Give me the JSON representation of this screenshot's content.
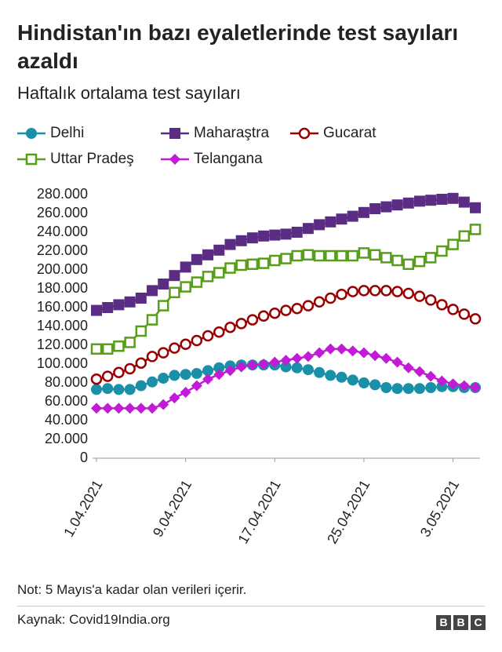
{
  "chart_data": {
    "type": "line",
    "title": "Hindistan'ın bazı eyaletlerinde test sayıları azaldı",
    "subtitle": "Haftalık ortalama test sayıları",
    "note": "Not: 5 Mayıs'a kadar olan verileri içerir.",
    "source": "Kaynak: Covid19India.org",
    "categories": [
      "1.04.2021",
      null,
      null,
      null,
      null,
      null,
      null,
      null,
      "9.04.2021",
      null,
      null,
      null,
      null,
      null,
      null,
      null,
      "17.04.2021",
      null,
      null,
      null,
      null,
      null,
      null,
      null,
      "25.04.2021",
      null,
      null,
      null,
      null,
      null,
      null,
      null,
      "3.05.2021",
      null,
      null
    ],
    "ylim": [
      0,
      280000
    ],
    "yticks": [
      0,
      {
        "value": 20000,
        "label": "20.000"
      },
      {
        "value": 40000,
        "label": "40.000"
      },
      {
        "value": 60000,
        "label": "60.000"
      },
      {
        "value": 80000,
        "label": "80.000"
      },
      {
        "value": 100000,
        "label": "100.000"
      },
      {
        "value": 120000,
        "label": "120.000"
      },
      {
        "value": 140000,
        "label": "140.000"
      },
      {
        "value": 160000,
        "label": "160.000"
      },
      {
        "value": 180000,
        "label": "180.000"
      },
      {
        "value": 200000,
        "label": "200.000"
      },
      {
        "value": 220000,
        "label": "220.000"
      },
      {
        "value": 240000,
        "label": "240.000"
      },
      {
        "value": 260000,
        "label": "260.000"
      },
      {
        "value": 280000,
        "label": "280.000"
      }
    ],
    "series": [
      {
        "name": "Delhi",
        "color": "#1a8fa8",
        "marker": "circle",
        "values": [
          73000,
          74000,
          73000,
          73000,
          77000,
          81000,
          85000,
          88000,
          89000,
          90000,
          93000,
          96000,
          98000,
          99000,
          99000,
          99000,
          99000,
          97000,
          96000,
          94000,
          91000,
          88000,
          86000,
          83000,
          80000,
          78000,
          75000,
          74000,
          74000,
          74000,
          75000,
          76000,
          76000,
          75000,
          75000
        ]
      },
      {
        "name": "Maharaştra",
        "color": "#5b2c83",
        "marker": "square",
        "values": [
          157000,
          160000,
          163000,
          166000,
          170000,
          178000,
          185000,
          194000,
          203000,
          211000,
          216000,
          221000,
          227000,
          231000,
          234000,
          236000,
          237000,
          238000,
          240000,
          244000,
          248000,
          251000,
          254000,
          257000,
          261000,
          265000,
          267000,
          269000,
          271000,
          273000,
          274000,
          275000,
          276000,
          272000,
          266000
        ]
      },
      {
        "name": "Gucarat",
        "color": "#990000",
        "marker": "open-circle",
        "values": [
          84000,
          87000,
          91000,
          95000,
          101000,
          108000,
          112000,
          117000,
          121000,
          125000,
          130000,
          134000,
          139000,
          143000,
          147000,
          151000,
          154000,
          157000,
          159000,
          162000,
          166000,
          170000,
          174000,
          177000,
          178000,
          178000,
          178000,
          177000,
          175000,
          172000,
          168000,
          163000,
          158000,
          153000,
          148000
        ]
      },
      {
        "name": "Uttar Pradeş",
        "color": "#589e1b",
        "marker": "open-square",
        "values": [
          116000,
          116000,
          119000,
          123000,
          135000,
          147000,
          162000,
          176000,
          182000,
          187000,
          193000,
          197000,
          202000,
          205000,
          206000,
          207000,
          210000,
          212000,
          215000,
          216000,
          215000,
          215000,
          215000,
          215000,
          218000,
          216000,
          213000,
          210000,
          206000,
          209000,
          213000,
          220000,
          227000,
          236000,
          243000
        ]
      },
      {
        "name": "Telangana",
        "color": "#c11bd6",
        "marker": "diamond",
        "values": [
          53000,
          53000,
          53000,
          53000,
          53000,
          53000,
          57000,
          64000,
          70000,
          77000,
          84000,
          89000,
          93000,
          97000,
          99000,
          100000,
          102000,
          104000,
          106000,
          108000,
          112000,
          116000,
          116000,
          114000,
          112000,
          109000,
          106000,
          102000,
          96000,
          92000,
          87000,
          82000,
          79000,
          77000,
          75000
        ]
      }
    ]
  }
}
